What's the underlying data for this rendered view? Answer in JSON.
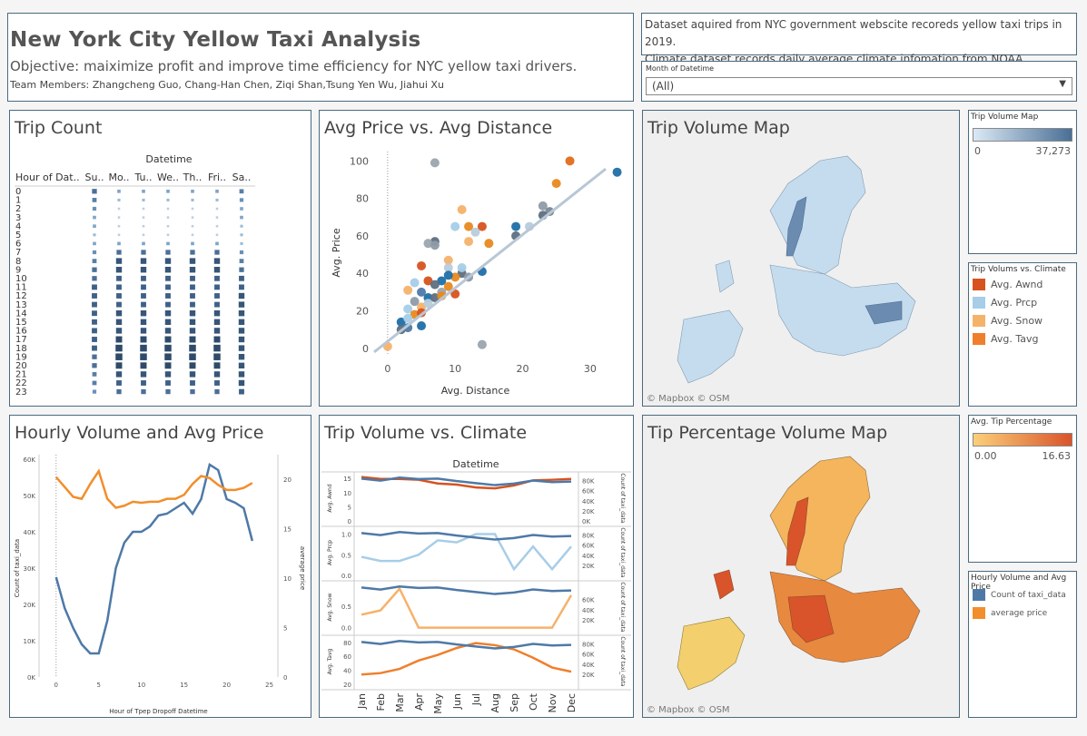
{
  "header": {
    "title": "New York City Yellow Taxi Analysis",
    "objective": "Objective: maiximize profit and improve time efficiency for NYC yellow taxi drivers.",
    "team": "Team Members: Zhangcheng Guo, Chang-Han Chen, Ziqi Shan,Tsung Yen Wu, Jiahui Xu"
  },
  "description": {
    "line1": "Dataset aquired from NYC government webscite recoreds yellow taxi trips in 2019.",
    "line2": "Climate dataset records daily average climate infomation from NOAA."
  },
  "filter": {
    "label": "Month of Datetime",
    "value": "(All)"
  },
  "panels": {
    "trip_count": "Trip Count",
    "price_distance": "Avg Price vs. Avg Distance",
    "trip_map": "Trip Volume Map",
    "hourly": "Hourly Volume and Avg Price",
    "climate": "Trip Volume vs. Climate",
    "tip_map": "Tip Percentage Volume Map"
  },
  "legends": {
    "trip_volume": {
      "title": "Trip Volume Map",
      "min": "0",
      "max": "37,273",
      "color_low": "#cfe2f0",
      "color_high": "#4a6f96"
    },
    "climate": {
      "title": "Trip Volums vs. Climate",
      "items": [
        {
          "label": "Avg. Awnd",
          "color": "#d6531f"
        },
        {
          "label": "Avg. Prcp",
          "color": "#a7cde8"
        },
        {
          "label": "Avg. Snow",
          "color": "#f5b26b"
        },
        {
          "label": "Avg. Tavg",
          "color": "#ef7f2c"
        }
      ]
    },
    "tip": {
      "title": "Avg. Tip Percentage",
      "min": "0.00",
      "max": "16.63",
      "color_low": "#fbd07a",
      "color_high": "#d9542a"
    },
    "hourly": {
      "title": "Hourly Volume and Avg Price",
      "items": [
        {
          "label": "Count of taxi_data",
          "color": "#4e79a7"
        },
        {
          "label": "average price",
          "color": "#f28e2b"
        }
      ]
    }
  },
  "map_credit": "© Mapbox  © OSM",
  "chart_data": [
    {
      "type": "heatmap",
      "title": "Trip Count",
      "column_header": "Datetime",
      "row_header": "Hour of Dat..",
      "columns": [
        "Su..",
        "Mo..",
        "Tu..",
        "We..",
        "Th..",
        "Fri..",
        "Sa.."
      ],
      "rows": [
        "0",
        "1",
        "2",
        "3",
        "4",
        "5",
        "6",
        "7",
        "8",
        "9",
        "10",
        "11",
        "12",
        "13",
        "14",
        "15",
        "16",
        "17",
        "18",
        "19",
        "20",
        "21",
        "22",
        "23"
      ],
      "values": [
        [
          6,
          3,
          3,
          3,
          3,
          3,
          5
        ],
        [
          5,
          2,
          2,
          2,
          2,
          2,
          4
        ],
        [
          4,
          1,
          1,
          1,
          1,
          1,
          3
        ],
        [
          3,
          1,
          1,
          1,
          1,
          1,
          3
        ],
        [
          3,
          1,
          1,
          1,
          1,
          1,
          2
        ],
        [
          2,
          1,
          1,
          1,
          1,
          1,
          2
        ],
        [
          3,
          3,
          3,
          3,
          3,
          3,
          2
        ],
        [
          4,
          6,
          6,
          6,
          6,
          6,
          4
        ],
        [
          5,
          8,
          8,
          8,
          8,
          8,
          5
        ],
        [
          6,
          8,
          8,
          8,
          8,
          8,
          6
        ],
        [
          6,
          7,
          7,
          7,
          7,
          7,
          7
        ],
        [
          7,
          7,
          7,
          7,
          7,
          7,
          7
        ],
        [
          7,
          7,
          7,
          7,
          7,
          7,
          8
        ],
        [
          7,
          7,
          7,
          7,
          7,
          7,
          8
        ],
        [
          7,
          8,
          8,
          8,
          8,
          8,
          8
        ],
        [
          7,
          8,
          8,
          8,
          8,
          8,
          8
        ],
        [
          7,
          8,
          8,
          8,
          8,
          8,
          8
        ],
        [
          7,
          9,
          9,
          9,
          9,
          9,
          8
        ],
        [
          7,
          10,
          10,
          10,
          10,
          10,
          8
        ],
        [
          6,
          10,
          10,
          10,
          10,
          10,
          8
        ],
        [
          6,
          9,
          9,
          9,
          9,
          9,
          8
        ],
        [
          5,
          8,
          8,
          8,
          8,
          8,
          8
        ],
        [
          5,
          7,
          7,
          7,
          7,
          7,
          8
        ],
        [
          4,
          6,
          6,
          6,
          6,
          6,
          7
        ]
      ]
    },
    {
      "type": "scatter",
      "title": "Avg Price vs. Avg Distance",
      "xlabel": "Avg. Distance",
      "ylabel": "Avg. Price",
      "xlim": [
        -2,
        35
      ],
      "ylim": [
        -3,
        105
      ],
      "xticks": [
        0,
        10,
        20,
        30
      ],
      "yticks": [
        0,
        20,
        40,
        60,
        80,
        100
      ],
      "trend": [
        [
          -2,
          -2
        ],
        [
          35,
          103
        ]
      ],
      "points": [
        [
          7,
          99,
          "#9aa5ae"
        ],
        [
          27,
          100,
          "#e16d1a"
        ],
        [
          34,
          94,
          "#1f6fa8"
        ],
        [
          25,
          88,
          "#e8891f"
        ],
        [
          23,
          76,
          "#8e9ba6"
        ],
        [
          24,
          73,
          "#7b8893"
        ],
        [
          23,
          71,
          "#5e6f7f"
        ],
        [
          11,
          74,
          "#f5b26b"
        ],
        [
          19,
          65,
          "#1f6fa8"
        ],
        [
          21,
          65,
          "#b7ccdb"
        ],
        [
          19,
          60,
          "#5e6f7f"
        ],
        [
          12,
          65,
          "#e8891f"
        ],
        [
          14,
          65,
          "#d6531f"
        ],
        [
          10,
          65,
          "#a7cde8"
        ],
        [
          13,
          62,
          "#b7ccdb"
        ],
        [
          7,
          57,
          "#5e6f7f"
        ],
        [
          6,
          56,
          "#9aa5ae"
        ],
        [
          12,
          57,
          "#f5b26b"
        ],
        [
          15,
          56,
          "#e8891f"
        ],
        [
          7,
          55,
          "#8e9ba6"
        ],
        [
          9,
          47,
          "#f5b26b"
        ],
        [
          5,
          44,
          "#d6531f"
        ],
        [
          14,
          41,
          "#1f6fa8"
        ],
        [
          9,
          43,
          "#b7ccdb"
        ],
        [
          11,
          40,
          "#5e6f7f"
        ],
        [
          10,
          38,
          "#e8891f"
        ],
        [
          12,
          38,
          "#8e9ba6"
        ],
        [
          8,
          36,
          "#1f6fa8"
        ],
        [
          6,
          36,
          "#d6531f"
        ],
        [
          4,
          35,
          "#a7cde8"
        ],
        [
          3,
          31,
          "#f5b26b"
        ],
        [
          7,
          34,
          "#5e6f7f"
        ],
        [
          9,
          33,
          "#e8891f"
        ],
        [
          5,
          30,
          "#4e79a7"
        ],
        [
          8,
          30,
          "#9aa5ae"
        ],
        [
          10,
          29,
          "#d6531f"
        ],
        [
          6,
          27,
          "#1f6fa8"
        ],
        [
          4,
          25,
          "#8e9ba6"
        ],
        [
          3,
          21,
          "#a7cde8"
        ],
        [
          5,
          22,
          "#f5b26b"
        ],
        [
          7,
          27,
          "#5e6f7f"
        ],
        [
          4,
          18,
          "#e8891f"
        ],
        [
          2,
          14,
          "#1f6fa8"
        ],
        [
          3,
          16,
          "#a7cde8"
        ],
        [
          5,
          12,
          "#1f6fa8"
        ],
        [
          3,
          11,
          "#4e79a7"
        ],
        [
          2,
          10,
          "#5e6f7f"
        ],
        [
          5,
          19,
          "#d6531f"
        ],
        [
          14,
          2,
          "#9aa5ae"
        ],
        [
          0,
          1,
          "#f5b26b"
        ],
        [
          6,
          24,
          "#b7ccdb"
        ],
        [
          8,
          28,
          "#e8891f"
        ],
        [
          9,
          39,
          "#1f6fa8"
        ],
        [
          11,
          43,
          "#a7cde8"
        ]
      ]
    },
    {
      "type": "line",
      "title": "Hourly Volume and Avg Price",
      "xlabel": "Hour of Tpep Dropoff Datetime",
      "ylabel": "Count of taxi_data",
      "y2label": "average price",
      "xlim": [
        -2,
        26
      ],
      "ylim": [
        0,
        60000
      ],
      "y2lim": [
        0,
        22
      ],
      "xticks": [
        0,
        5,
        10,
        15,
        20,
        25
      ],
      "yticks": [
        0,
        10000,
        20000,
        30000,
        40000,
        50000,
        60000
      ],
      "yticklabels": [
        "0K",
        "10K",
        "20K",
        "30K",
        "40K",
        "50K",
        "60K"
      ],
      "y2ticks": [
        0,
        5,
        10,
        15,
        20
      ],
      "x": [
        0,
        1,
        2,
        3,
        4,
        5,
        6,
        7,
        8,
        9,
        10,
        11,
        12,
        13,
        14,
        15,
        16,
        17,
        18,
        19,
        20,
        21,
        22,
        23
      ],
      "series": [
        {
          "name": "Count of taxi_data",
          "axis": "left",
          "color": "#4e79a7",
          "values": [
            27500,
            19000,
            13500,
            9000,
            6500,
            6500,
            15500,
            30000,
            37000,
            40000,
            40000,
            41500,
            44500,
            45000,
            46500,
            48000,
            45000,
            49000,
            58500,
            57000,
            49000,
            48000,
            46500,
            37500
          ]
        },
        {
          "name": "average price",
          "axis": "right",
          "color": "#f28e2b",
          "values": [
            20.2,
            19.2,
            18.2,
            18,
            19.5,
            20.8,
            18,
            17.1,
            17.3,
            17.7,
            17.6,
            17.7,
            17.7,
            18,
            18,
            18.4,
            19.5,
            20.3,
            20.1,
            19.4,
            18.9,
            18.9,
            19.1,
            19.6
          ]
        }
      ]
    },
    {
      "type": "line",
      "title": "Trip Volume vs. Climate",
      "column_header": "Datetime",
      "categories": [
        "Jan",
        "Feb",
        "Mar",
        "Apr",
        "May",
        "Jun",
        "Jul",
        "Aug",
        "Sep",
        "Oct",
        "Nov",
        "Dec"
      ],
      "y2label": "Count of taxi_data",
      "panels": [
        {
          "ylabel": "Avg. Awnd",
          "ylim": [
            0,
            16
          ],
          "yticks": [
            0,
            5,
            10,
            15
          ],
          "yticklabels": [
            "0",
            "5",
            "10",
            "15"
          ],
          "y2lim": [
            0,
            90000
          ],
          "y2ticks": [
            0,
            20000,
            40000,
            60000,
            80000
          ],
          "y2ticklabels": [
            "0K",
            "20K",
            "40K",
            "60K",
            "80K"
          ],
          "climate_color": "#d6531f",
          "climate": [
            15.5,
            14.8,
            14.8,
            14.5,
            13.2,
            12.8,
            11.8,
            11.5,
            12.5,
            14.3,
            14.5,
            14.8
          ],
          "volume": [
            84000,
            80000,
            86000,
            83000,
            84000,
            79000,
            75000,
            71000,
            74000,
            80000,
            77000,
            78000
          ]
        },
        {
          "ylabel": "Avg. Prcp",
          "ylim": [
            0,
            1.1
          ],
          "yticks": [
            0,
            0.5,
            1
          ],
          "yticklabels": [
            "0.0",
            "0.5",
            "1.0"
          ],
          "y2lim": [
            0,
            90000
          ],
          "y2ticks": [
            20000,
            40000,
            60000,
            80000
          ],
          "y2ticklabels": [
            "20K",
            "40K",
            "60K",
            "80K"
          ],
          "climate_color": "#a7cde8",
          "climate": [
            0.45,
            0.35,
            0.35,
            0.5,
            0.85,
            0.8,
            1.0,
            1.0,
            0.15,
            0.7,
            0.15,
            0.7
          ],
          "volume": [
            84000,
            80000,
            86000,
            83000,
            84000,
            79000,
            75000,
            71000,
            74000,
            80000,
            77000,
            78000
          ]
        },
        {
          "ylabel": "Avg. Snow",
          "ylim": [
            -0.05,
            1.0
          ],
          "yticks": [
            0,
            0.5
          ],
          "yticklabels": [
            "0.0",
            "0.5"
          ],
          "y2lim": [
            0,
            90000
          ],
          "y2ticks": [
            20000,
            40000,
            60000
          ],
          "y2ticklabels": [
            "20K",
            "40K",
            "60K"
          ],
          "climate_color": "#f5b26b",
          "climate": [
            0.3,
            0.4,
            0.9,
            0,
            0,
            0,
            0,
            0,
            0,
            0,
            0,
            0.75
          ],
          "volume": [
            84000,
            80000,
            86000,
            83000,
            84000,
            79000,
            75000,
            71000,
            74000,
            80000,
            77000,
            78000
          ]
        },
        {
          "ylabel": "Avg. Tavg",
          "ylim": [
            20,
            85
          ],
          "yticks": [
            20,
            40,
            60,
            80
          ],
          "yticklabels": [
            "20",
            "40",
            "60",
            "80"
          ],
          "y2lim": [
            0,
            90000
          ],
          "y2ticks": [
            20000,
            40000,
            60000,
            80000
          ],
          "y2ticklabels": [
            "20K",
            "40K",
            "60K",
            "80K"
          ],
          "climate_color": "#ef7f2c",
          "climate": [
            34,
            36,
            42,
            54,
            62,
            72,
            79,
            76,
            70,
            58,
            44,
            38
          ],
          "volume": [
            84000,
            80000,
            86000,
            83000,
            84000,
            79000,
            75000,
            71000,
            74000,
            80000,
            77000,
            78000
          ]
        }
      ]
    }
  ]
}
